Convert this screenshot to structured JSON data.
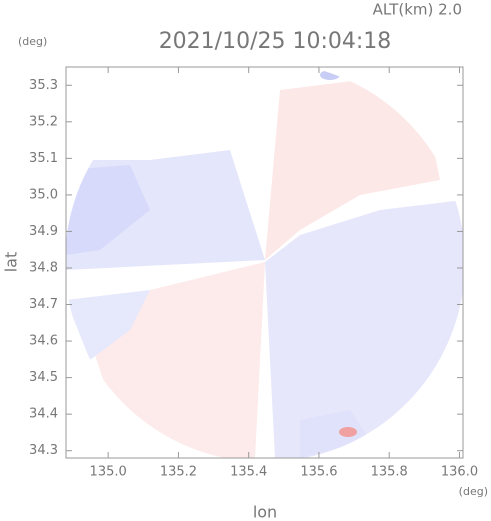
{
  "chart_data": {
    "type": "map",
    "title": "2021/10/25 10:04:18",
    "altitude_label": "ALT(km) 2.0",
    "y_unit": "(deg)",
    "x_unit": "(deg)",
    "xlabel": "lon",
    "ylabel": "lat",
    "xlim": [
      134.88,
      136.01
    ],
    "ylim": [
      34.28,
      35.35
    ],
    "xticks": [
      {
        "value": 135,
        "label": "135.0"
      },
      {
        "value": 135.2,
        "label": "135.2"
      },
      {
        "value": 135.4,
        "label": "135.4"
      },
      {
        "value": 135.6,
        "label": "135.6"
      },
      {
        "value": 135.8,
        "label": "135.8"
      },
      {
        "value": 136,
        "label": "136.0"
      }
    ],
    "yticks": [
      {
        "value": 34.3,
        "label": "34.3"
      },
      {
        "value": 34.4,
        "label": "34.4"
      },
      {
        "value": 34.5,
        "label": "34.5"
      },
      {
        "value": 34.6,
        "label": "34.6"
      },
      {
        "value": 34.7,
        "label": "34.7"
      },
      {
        "value": 34.8,
        "label": "34.8"
      },
      {
        "value": 34.9,
        "label": "34.9"
      },
      {
        "value": 35,
        "label": "35.0"
      },
      {
        "value": 35.1,
        "label": "35.1"
      },
      {
        "value": 35.2,
        "label": "35.2"
      },
      {
        "value": 35.3,
        "label": "35.3"
      }
    ]
  }
}
